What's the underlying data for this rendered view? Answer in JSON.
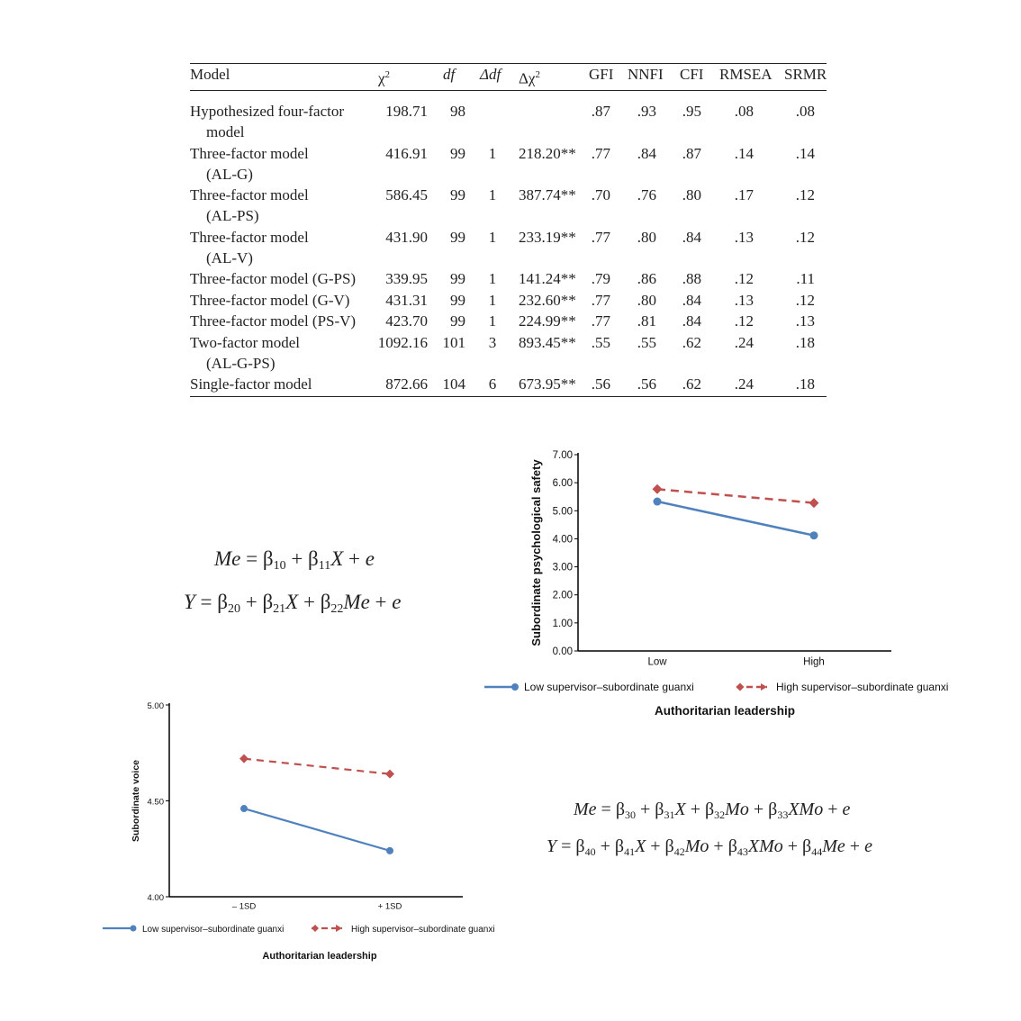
{
  "table": {
    "headers": {
      "model": "Model",
      "chi2": "χ",
      "chi2_sup": "2",
      "df": "df",
      "ddf": "Δdf",
      "dchi2": "Δχ",
      "dchi2_sup": "2",
      "gfi": "GFI",
      "nnfi": "NNFI",
      "cfi": "CFI",
      "rmsea": "RMSEA",
      "srmr": "SRMR"
    },
    "rows": [
      {
        "model": "Hypothesized four-factor",
        "model2": "model",
        "chi2": "198.71",
        "df": "98",
        "ddf": "",
        "dchi2": "",
        "gfi": ".87",
        "nnfi": ".93",
        "cfi": ".95",
        "rmsea": ".08",
        "srmr": ".08"
      },
      {
        "model": "Three-factor model",
        "model2": "(AL-G)",
        "chi2": "416.91",
        "df": "99",
        "ddf": "1",
        "dchi2": "218.20**",
        "gfi": ".77",
        "nnfi": ".84",
        "cfi": ".87",
        "rmsea": ".14",
        "srmr": ".14"
      },
      {
        "model": "Three-factor model",
        "model2": "(AL-PS)",
        "chi2": "586.45",
        "df": "99",
        "ddf": "1",
        "dchi2": "387.74**",
        "gfi": ".70",
        "nnfi": ".76",
        "cfi": ".80",
        "rmsea": ".17",
        "srmr": ".12"
      },
      {
        "model": "Three-factor model",
        "model2": "(AL-V)",
        "chi2": "431.90",
        "df": "99",
        "ddf": "1",
        "dchi2": "233.19**",
        "gfi": ".77",
        "nnfi": ".80",
        "cfi": ".84",
        "rmsea": ".13",
        "srmr": ".12"
      },
      {
        "model": "Three-factor model (G-PS)",
        "model2": "",
        "chi2": "339.95",
        "df": "99",
        "ddf": "1",
        "dchi2": "141.24**",
        "gfi": ".79",
        "nnfi": ".86",
        "cfi": ".88",
        "rmsea": ".12",
        "srmr": ".11"
      },
      {
        "model": "Three-factor model (G-V)",
        "model2": "",
        "chi2": "431.31",
        "df": "99",
        "ddf": "1",
        "dchi2": "232.60**",
        "gfi": ".77",
        "nnfi": ".80",
        "cfi": ".84",
        "rmsea": ".13",
        "srmr": ".12"
      },
      {
        "model": "Three-factor model (PS-V)",
        "model2": "",
        "chi2": "423.70",
        "df": "99",
        "ddf": "1",
        "dchi2": "224.99**",
        "gfi": ".77",
        "nnfi": ".81",
        "cfi": ".84",
        "rmsea": ".12",
        "srmr": ".13"
      },
      {
        "model": "Two-factor model",
        "model2": "(AL-G-PS)",
        "chi2": "1092.16",
        "df": "101",
        "ddf": "3",
        "dchi2": "893.45**",
        "gfi": ".55",
        "nnfi": ".55",
        "cfi": ".62",
        "rmsea": ".24",
        "srmr": ".18"
      },
      {
        "model": "Single-factor model",
        "model2": "",
        "chi2": "872.66",
        "df": "104",
        "ddf": "6",
        "dchi2": "673.95**",
        "gfi": ".56",
        "nnfi": ".56",
        "cfi": ".62",
        "rmsea": ".24",
        "srmr": ".18"
      }
    ]
  },
  "equations1": {
    "line1": {
      "lhs": "Me",
      "b0": "β",
      "b0sub": "10",
      "b1": "β",
      "b1sub": "11",
      "x": "X",
      "e": "e"
    },
    "line2": {
      "lhs": "Y",
      "b0": "β",
      "b0sub": "20",
      "b1": "β",
      "b1sub": "21",
      "x": "X",
      "b2": "β",
      "b2sub": "22",
      "me": "Me",
      "e": "e"
    }
  },
  "equations2": {
    "line1": {
      "lhs": "Me",
      "b0sub": "30",
      "b1sub": "31",
      "x": "X",
      "b2sub": "32",
      "mo": "Mo",
      "b3sub": "33",
      "xmo": "XMo",
      "e": "e"
    },
    "line2": {
      "lhs": "Y",
      "b0sub": "40",
      "b1sub": "41",
      "x": "X",
      "b2sub": "42",
      "mo": "Mo",
      "b3sub": "43",
      "xmo": "XMo",
      "b4sub": "44",
      "me": "Me",
      "e": "e"
    }
  },
  "chart_data": [
    {
      "type": "line",
      "xlabel": "Authoritarian leadership",
      "ylabel": "Subordinate psychological safety",
      "categories": [
        "Low",
        "High"
      ],
      "ylim": [
        0,
        7
      ],
      "yticks": [
        "0.00",
        "1.00",
        "2.00",
        "3.00",
        "4.00",
        "5.00",
        "6.00",
        "7.00"
      ],
      "series": [
        {
          "name": "Low supervisor–subordinate guanxi",
          "values": [
            5.33,
            4.12
          ],
          "color": "#4f81bd",
          "style": "solid",
          "marker": "circle"
        },
        {
          "name": "High supervisor–subordinate guanxi",
          "values": [
            5.77,
            5.28
          ],
          "color": "#c0504d",
          "style": "dashed",
          "marker": "diamond"
        }
      ],
      "legend": "bottom",
      "grid": false
    },
    {
      "type": "line",
      "xlabel": "Authoritarian leadership",
      "ylabel": "Subordinate voice",
      "categories": [
        "– 1SD",
        "+ 1SD"
      ],
      "ylim": [
        4.0,
        5.0
      ],
      "yticks": [
        "4.00",
        "4.50",
        "5.00"
      ],
      "series": [
        {
          "name": "Low supervisor–subordinate guanxi",
          "values": [
            4.46,
            4.24
          ],
          "color": "#4f81bd",
          "style": "solid",
          "marker": "circle"
        },
        {
          "name": "High supervisor–subordinate guanxi",
          "values": [
            4.72,
            4.64
          ],
          "color": "#c0504d",
          "style": "dashed",
          "marker": "diamond"
        }
      ],
      "legend": "bottom",
      "grid": false
    }
  ]
}
